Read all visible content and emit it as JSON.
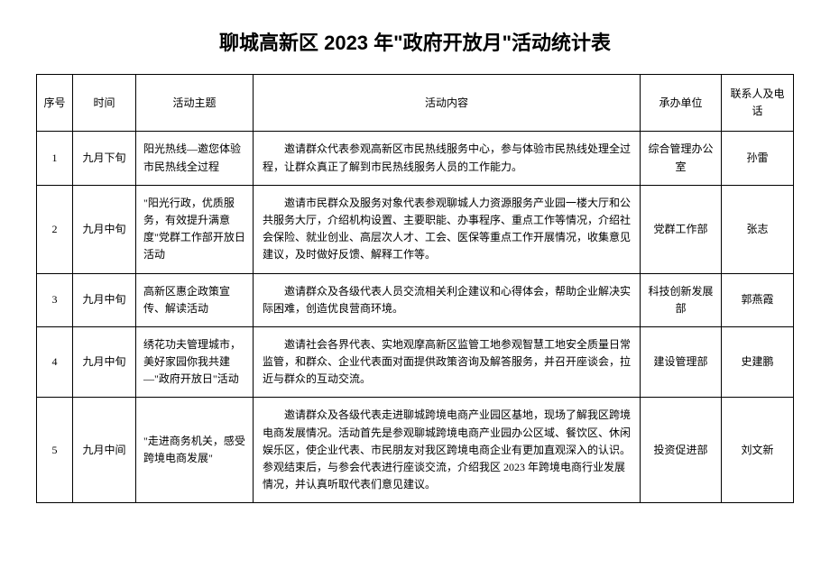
{
  "title": "聊城高新区 2023 年\"政府开放月\"活动统计表",
  "headers": {
    "seq": "序号",
    "time": "时间",
    "topic": "活动主题",
    "content": "活动内容",
    "dept": "承办单位",
    "contact": "联系人及电话"
  },
  "rows": [
    {
      "seq": "1",
      "time": "九月下旬",
      "topic": "阳光热线—邀您体验市民热线全过程",
      "content": "邀请群众代表参观高新区市民热线服务中心，参与体验市民热线处理全过程，让群众真正了解到市民热线服务人员的工作能力。",
      "dept": "综合管理办公室",
      "contact": "孙雷"
    },
    {
      "seq": "2",
      "time": "九月中旬",
      "topic": "\"阳光行政，优质服务，有效提升满意度\"党群工作部开放日活动",
      "content": "邀请市民群众及服务对象代表参观聊城人力资源服务产业园一楼大厅和公共服务大厅，介绍机构设置、主要职能、办事程序、重点工作等情况，介绍社会保险、就业创业、高层次人才、工会、医保等重点工作开展情况，收集意见建议，及时做好反馈、解释工作等。",
      "dept": "党群工作部",
      "contact": "张志"
    },
    {
      "seq": "3",
      "time": "九月中旬",
      "topic": "高新区惠企政策宣传、解读活动",
      "content": "邀请群众及各级代表人员交流相关利企建议和心得体会，帮助企业解决实际困难，创造优良营商环境。",
      "dept": "科技创新发展部",
      "contact": "郭燕霞"
    },
    {
      "seq": "4",
      "time": "九月中旬",
      "topic": "绣花功夫管理城市，美好家园你我共建—\"政府开放日\"活动",
      "content": "邀请社会各界代表、实地观摩高新区监管工地参观智慧工地安全质量日常监管，和群众、企业代表面对面提供政策咨询及解答服务，并召开座谈会，拉近与群众的互动交流。",
      "dept": "建设管理部",
      "contact": "史建鹏"
    },
    {
      "seq": "5",
      "time": "九月中间",
      "topic": "\"走进商务机关，感受跨境电商发展\"",
      "content": "邀请群众及各级代表走进聊城跨境电商产业园区基地，现场了解我区跨境电商发展情况。活动首先是参观聊城跨境电商产业园办公区域、餐饮区、休闲娱乐区，使企业代表、市民朋友对我区跨境电商企业有更加直观深入的认识。参观结束后，与参会代表进行座谈交流，介绍我区 2023 年跨境电商行业发展情况，并认真听取代表们意见建议。",
      "dept": "投资促进部",
      "contact": "刘文新"
    }
  ]
}
